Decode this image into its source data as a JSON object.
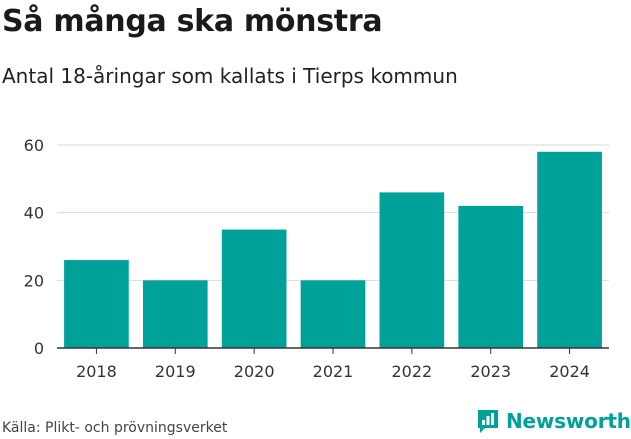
{
  "header": {
    "title": "Så många ska mönstra",
    "subtitle": "Antal 18-åringar som kallats i Tierps kommun"
  },
  "footer": {
    "source": "Källa: Plikt- och prövningsverket",
    "brand": "Newsworthy"
  },
  "colors": {
    "bar": "#00A199",
    "grid": "#d9d9d9",
    "axis": "#333333",
    "brand": "#00A199"
  },
  "chart_data": {
    "type": "bar",
    "title": "Så många ska mönstra",
    "subtitle": "Antal 18-åringar som kallats i Tierps kommun",
    "categories": [
      "2018",
      "2019",
      "2020",
      "2021",
      "2022",
      "2023",
      "2024"
    ],
    "values": [
      26,
      20,
      35,
      20,
      46,
      42,
      58
    ],
    "ylim": [
      0,
      60
    ],
    "yticks": [
      0,
      20,
      40,
      60
    ],
    "xlabel": "",
    "ylabel": "",
    "grid": true
  }
}
